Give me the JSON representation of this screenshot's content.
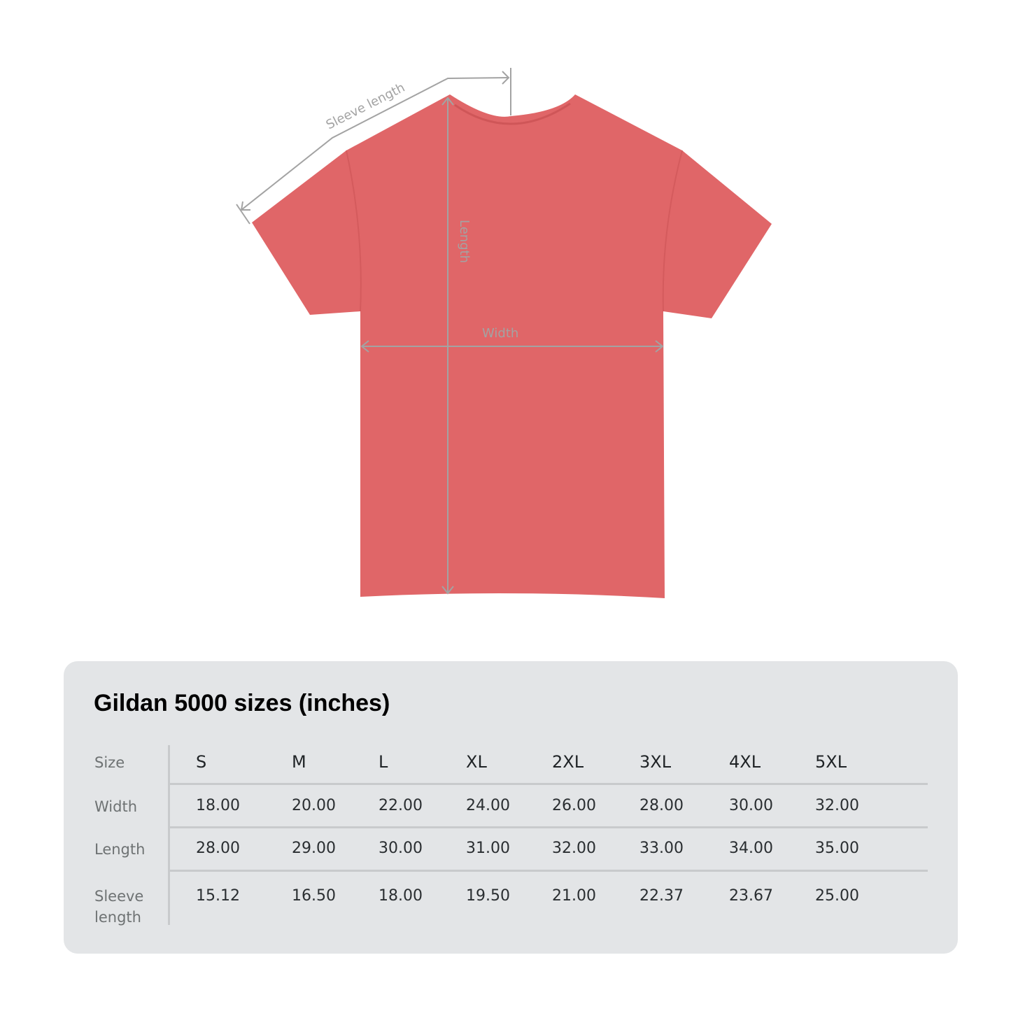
{
  "diagram": {
    "shirt_color": "#e06668",
    "measure_line_color": "#a3a3a3",
    "labels": {
      "sleeve": "Sleeve length",
      "length": "Length",
      "width": "Width"
    }
  },
  "table": {
    "title": "Gildan 5000 sizes (inches)",
    "row_labels": [
      "Size",
      "Width",
      "Length",
      "Sleeve length"
    ],
    "sizes": [
      "S",
      "M",
      "L",
      "XL",
      "2XL",
      "3XL",
      "4XL",
      "5XL"
    ],
    "rows": [
      [
        "18.00",
        "20.00",
        "22.00",
        "24.00",
        "26.00",
        "28.00",
        "30.00",
        "32.00"
      ],
      [
        "28.00",
        "29.00",
        "30.00",
        "31.00",
        "32.00",
        "33.00",
        "34.00",
        "35.00"
      ],
      [
        "15.12",
        "16.50",
        "18.00",
        "19.50",
        "21.00",
        "22.37",
        "23.67",
        "25.00"
      ]
    ],
    "panel_color": "#e3e5e7"
  }
}
